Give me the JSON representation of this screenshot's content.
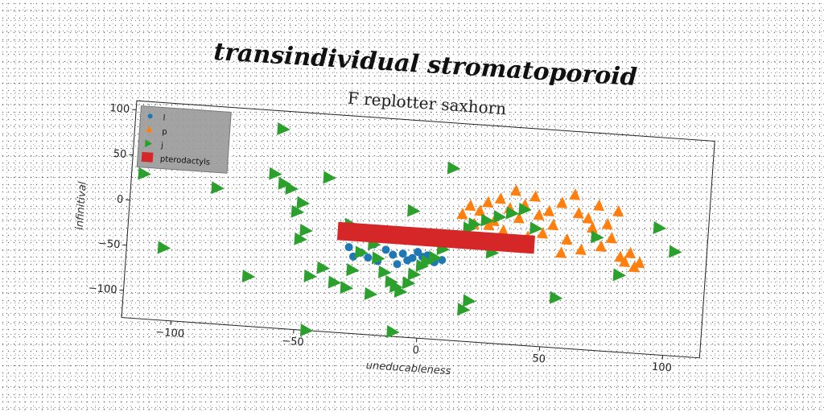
{
  "overtitle": "transindividual stromatoporoid",
  "chart_data": {
    "type": "scatter",
    "title": "F replotter saxhorn",
    "xlabel": "uneducableness",
    "ylabel": "infinitival",
    "xlim": [
      -120,
      115
    ],
    "ylim": [
      -130,
      110
    ],
    "xticks": [
      -100,
      -50,
      0,
      50,
      100
    ],
    "yticks": [
      100,
      50,
      0,
      -50,
      -100
    ],
    "grid": false,
    "legend_position": "top-left",
    "series": [
      {
        "name": "l",
        "marker": "circle",
        "color": "#1f77b4",
        "points": [
          [
            -30,
            -35
          ],
          [
            -25,
            -40
          ],
          [
            -20,
            -30
          ],
          [
            -22,
            -45
          ],
          [
            -15,
            -35
          ],
          [
            -10,
            -50
          ],
          [
            -12,
            -40
          ],
          [
            -8,
            -38
          ],
          [
            -6,
            -45
          ],
          [
            -4,
            -42
          ],
          [
            -2,
            -35
          ],
          [
            0,
            -40
          ],
          [
            2,
            -38
          ],
          [
            5,
            -45
          ],
          [
            8,
            -42
          ],
          [
            -18,
            -48
          ],
          [
            -28,
            -45
          ]
        ]
      },
      {
        "name": "p",
        "marker": "triangle-up",
        "color": "#ff7f0e",
        "points": [
          [
            15,
            10
          ],
          [
            18,
            20
          ],
          [
            20,
            0
          ],
          [
            22,
            15
          ],
          [
            25,
            25
          ],
          [
            28,
            5
          ],
          [
            30,
            30
          ],
          [
            32,
            -5
          ],
          [
            34,
            20
          ],
          [
            36,
            40
          ],
          [
            38,
            10
          ],
          [
            40,
            25
          ],
          [
            42,
            -10
          ],
          [
            44,
            35
          ],
          [
            46,
            15
          ],
          [
            48,
            -5
          ],
          [
            50,
            20
          ],
          [
            52,
            5
          ],
          [
            55,
            30
          ],
          [
            58,
            -10
          ],
          [
            60,
            40
          ],
          [
            62,
            20
          ],
          [
            64,
            -20
          ],
          [
            66,
            15
          ],
          [
            68,
            5
          ],
          [
            70,
            30
          ],
          [
            72,
            -15
          ],
          [
            74,
            10
          ],
          [
            76,
            -5
          ],
          [
            78,
            25
          ],
          [
            80,
            -25
          ],
          [
            82,
            -30
          ],
          [
            84,
            -20
          ],
          [
            86,
            -35
          ],
          [
            88,
            -30
          ],
          [
            26,
            0
          ],
          [
            30,
            -15
          ],
          [
            56,
            -25
          ]
        ]
      },
      {
        "name": "j",
        "marker": "triangle-right",
        "color": "#2ca02c",
        "points": [
          [
            -115,
            30
          ],
          [
            -105,
            -50
          ],
          [
            -85,
            20
          ],
          [
            -60,
            90
          ],
          [
            -62,
            40
          ],
          [
            -58,
            30
          ],
          [
            -55,
            25
          ],
          [
            -50,
            10
          ],
          [
            -52,
            0
          ],
          [
            -48,
            -20
          ],
          [
            -50,
            -30
          ],
          [
            -40,
            -60
          ],
          [
            -45,
            -70
          ],
          [
            -35,
            -75
          ],
          [
            -30,
            -80
          ],
          [
            -28,
            -60
          ],
          [
            -25,
            -40
          ],
          [
            -20,
            -30
          ],
          [
            -18,
            -45
          ],
          [
            -15,
            -60
          ],
          [
            -12,
            -70
          ],
          [
            -10,
            -75
          ],
          [
            -8,
            -80
          ],
          [
            -5,
            -70
          ],
          [
            -3,
            -60
          ],
          [
            0,
            -50
          ],
          [
            2,
            -45
          ],
          [
            5,
            -40
          ],
          [
            8,
            -30
          ],
          [
            10,
            -20
          ],
          [
            15,
            -15
          ],
          [
            18,
            -5
          ],
          [
            20,
            0
          ],
          [
            25,
            5
          ],
          [
            30,
            10
          ],
          [
            35,
            15
          ],
          [
            40,
            20
          ],
          [
            -70,
            -75
          ],
          [
            -45,
            -130
          ],
          [
            -10,
            -125
          ],
          [
            20,
            -85
          ],
          [
            55,
            -75
          ],
          [
            80,
            -45
          ],
          [
            95,
            10
          ],
          [
            102,
            -15
          ],
          [
            -40,
            40
          ],
          [
            -20,
            -85
          ],
          [
            60,
            -145
          ],
          [
            10,
            60
          ],
          [
            -5,
            10
          ],
          [
            28,
            -30
          ],
          [
            70,
            -5
          ],
          [
            45,
            0
          ],
          [
            -30,
            -10
          ],
          [
            18,
            -95
          ]
        ]
      },
      {
        "name": "pterodactyls",
        "marker": "bar",
        "color": "#d62728",
        "x_range": [
          -35,
          45
        ],
        "y_range": [
          -28,
          -8
        ]
      }
    ]
  }
}
